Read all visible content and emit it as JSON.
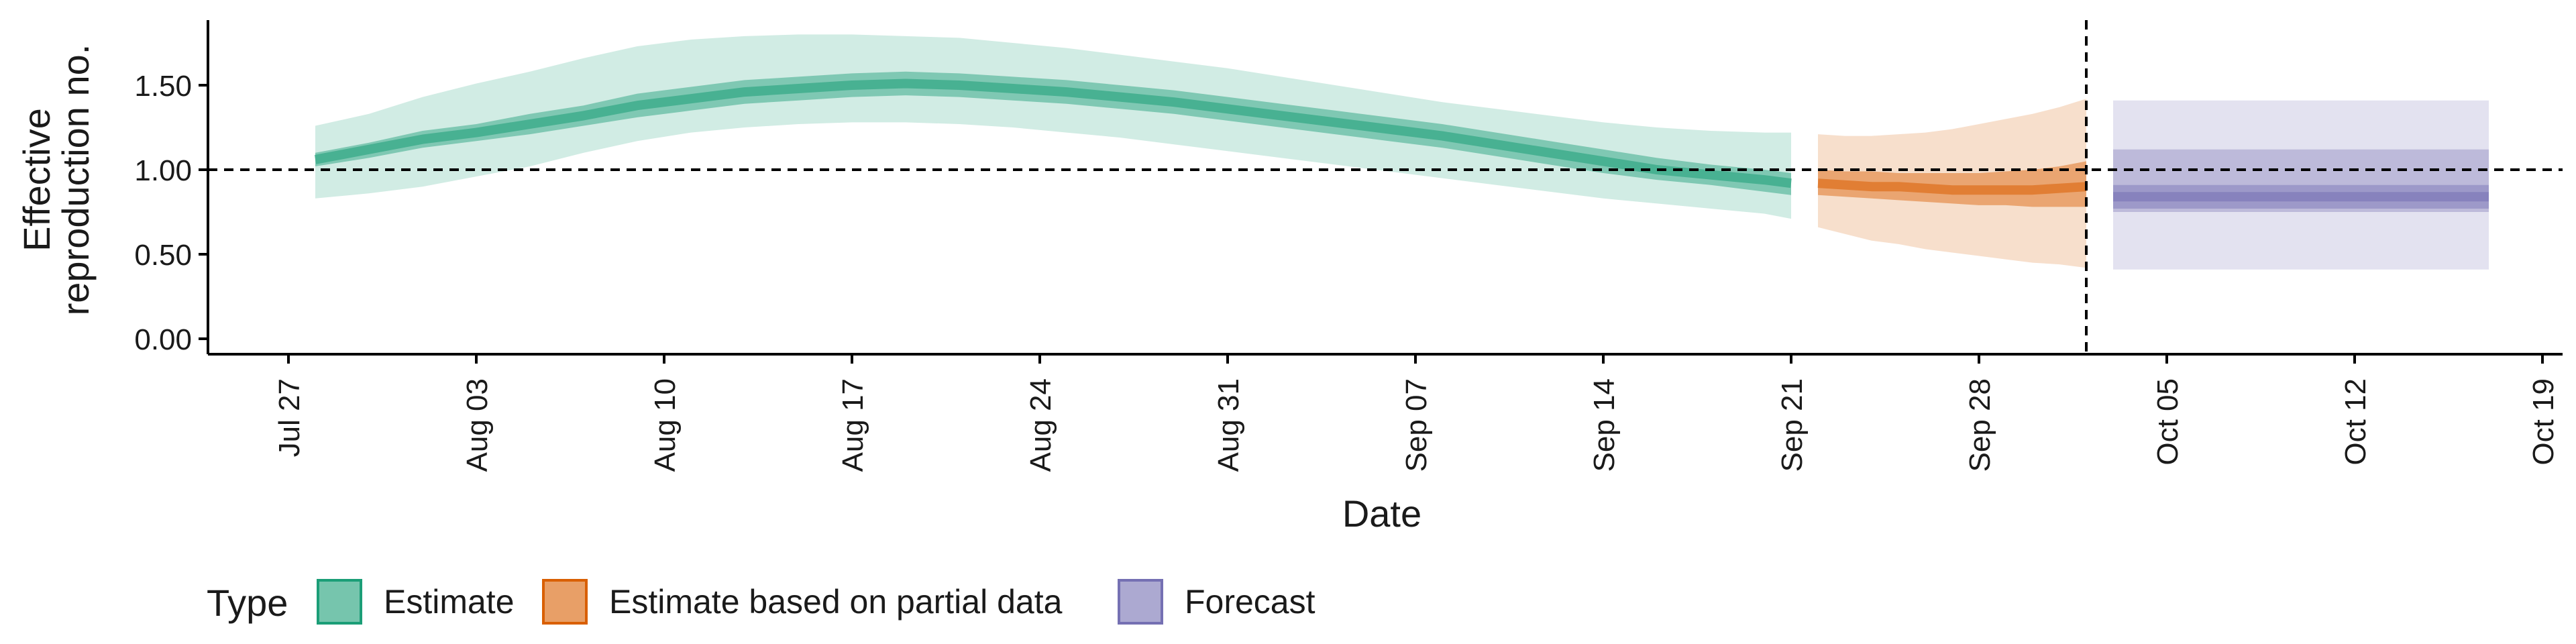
{
  "chart_data": {
    "type": "area",
    "title": "",
    "xlabel": "Date",
    "ylabel": "Effective\nreproduction no.",
    "ylim": [
      0,
      1.875
    ],
    "yticks": [
      0.0,
      0.5,
      1.0,
      1.5
    ],
    "ytick_labels": [
      "0.00",
      "0.50",
      "1.00",
      "1.50"
    ],
    "xlim": [
      "2020-07-23",
      "2020-10-20"
    ],
    "xticks": [
      "2020-07-27",
      "2020-08-03",
      "2020-08-10",
      "2020-08-17",
      "2020-08-24",
      "2020-08-31",
      "2020-09-07",
      "2020-09-14",
      "2020-09-21",
      "2020-09-28",
      "2020-10-05",
      "2020-10-12",
      "2020-10-19"
    ],
    "xtick_labels": [
      "Jul 27",
      "Aug 03",
      "Aug 10",
      "Aug 17",
      "Aug 24",
      "Aug 31",
      "Sep 07",
      "Sep 14",
      "Sep 21",
      "Sep 28",
      "Oct 05",
      "Oct 12",
      "Oct 19"
    ],
    "reference_lines": {
      "horizontal_y": 1.0,
      "vertical_x": "2020-10-02"
    },
    "legend": {
      "title": "Type",
      "placement": "bottom-left",
      "entries": [
        "Estimate",
        "Estimate based on partial data",
        "Forecast"
      ]
    },
    "colors": {
      "Estimate": "#1b9e77",
      "Estimate based on partial data": "#d95f02",
      "Forecast": "#7570b3"
    },
    "series": [
      {
        "name": "Estimate",
        "x": [
          "2020-07-28",
          "2020-07-30",
          "2020-08-01",
          "2020-08-03",
          "2020-08-05",
          "2020-08-07",
          "2020-08-09",
          "2020-08-11",
          "2020-08-13",
          "2020-08-15",
          "2020-08-17",
          "2020-08-19",
          "2020-08-21",
          "2020-08-23",
          "2020-08-25",
          "2020-08-27",
          "2020-08-29",
          "2020-08-31",
          "2020-09-02",
          "2020-09-04",
          "2020-09-06",
          "2020-09-08",
          "2020-09-10",
          "2020-09-12",
          "2020-09-14",
          "2020-09-16",
          "2020-09-18",
          "2020-09-20",
          "2020-09-21"
        ],
        "median": [
          1.06,
          1.12,
          1.18,
          1.22,
          1.27,
          1.32,
          1.38,
          1.42,
          1.46,
          1.48,
          1.5,
          1.51,
          1.5,
          1.48,
          1.46,
          1.43,
          1.4,
          1.36,
          1.32,
          1.28,
          1.24,
          1.2,
          1.15,
          1.1,
          1.05,
          1.0,
          0.97,
          0.94,
          0.92
        ],
        "lower_50": [
          1.02,
          1.07,
          1.13,
          1.17,
          1.21,
          1.26,
          1.31,
          1.35,
          1.39,
          1.41,
          1.43,
          1.44,
          1.43,
          1.41,
          1.39,
          1.36,
          1.33,
          1.29,
          1.25,
          1.21,
          1.17,
          1.13,
          1.08,
          1.03,
          0.98,
          0.94,
          0.91,
          0.87,
          0.85
        ],
        "upper_50": [
          1.1,
          1.16,
          1.23,
          1.27,
          1.33,
          1.38,
          1.45,
          1.49,
          1.53,
          1.55,
          1.57,
          1.58,
          1.57,
          1.55,
          1.53,
          1.5,
          1.47,
          1.43,
          1.39,
          1.35,
          1.31,
          1.27,
          1.22,
          1.17,
          1.12,
          1.07,
          1.03,
          1.0,
          0.98
        ],
        "lower_90": [
          0.83,
          0.86,
          0.9,
          0.96,
          1.02,
          1.1,
          1.17,
          1.22,
          1.25,
          1.27,
          1.28,
          1.28,
          1.27,
          1.25,
          1.22,
          1.19,
          1.15,
          1.11,
          1.07,
          1.03,
          0.99,
          0.95,
          0.91,
          0.87,
          0.83,
          0.8,
          0.77,
          0.74,
          0.71
        ],
        "upper_90": [
          1.26,
          1.33,
          1.43,
          1.51,
          1.58,
          1.66,
          1.73,
          1.77,
          1.79,
          1.8,
          1.8,
          1.79,
          1.78,
          1.75,
          1.72,
          1.68,
          1.64,
          1.6,
          1.55,
          1.5,
          1.45,
          1.4,
          1.36,
          1.32,
          1.28,
          1.25,
          1.23,
          1.22,
          1.22
        ]
      },
      {
        "name": "Estimate based on partial data",
        "x": [
          "2020-09-22",
          "2020-09-23",
          "2020-09-24",
          "2020-09-25",
          "2020-09-26",
          "2020-09-27",
          "2020-09-28",
          "2020-09-29",
          "2020-09-30",
          "2020-10-01",
          "2020-10-02"
        ],
        "median": [
          0.92,
          0.91,
          0.9,
          0.9,
          0.89,
          0.88,
          0.88,
          0.88,
          0.88,
          0.89,
          0.9
        ],
        "lower_50": [
          0.85,
          0.84,
          0.83,
          0.82,
          0.81,
          0.8,
          0.79,
          0.79,
          0.78,
          0.78,
          0.78
        ],
        "upper_50": [
          1.0,
          0.99,
          0.99,
          0.98,
          0.98,
          0.98,
          0.98,
          0.99,
          1.0,
          1.02,
          1.05
        ],
        "lower_90": [
          0.66,
          0.62,
          0.58,
          0.56,
          0.53,
          0.51,
          0.49,
          0.47,
          0.45,
          0.44,
          0.42
        ],
        "upper_90": [
          1.21,
          1.2,
          1.2,
          1.21,
          1.22,
          1.24,
          1.27,
          1.3,
          1.33,
          1.37,
          1.42
        ]
      },
      {
        "name": "Forecast",
        "x": [
          "2020-10-03",
          "2020-10-17"
        ],
        "median": [
          0.84,
          0.84
        ],
        "lower_50": [
          0.77,
          0.77
        ],
        "upper_50": [
          0.91,
          0.91
        ],
        "lower_outer": [
          0.75,
          0.75
        ],
        "upper_outer": [
          1.12,
          1.12
        ],
        "lower_90": [
          0.41,
          0.41
        ],
        "upper_90": [
          1.41,
          1.41
        ]
      }
    ]
  }
}
